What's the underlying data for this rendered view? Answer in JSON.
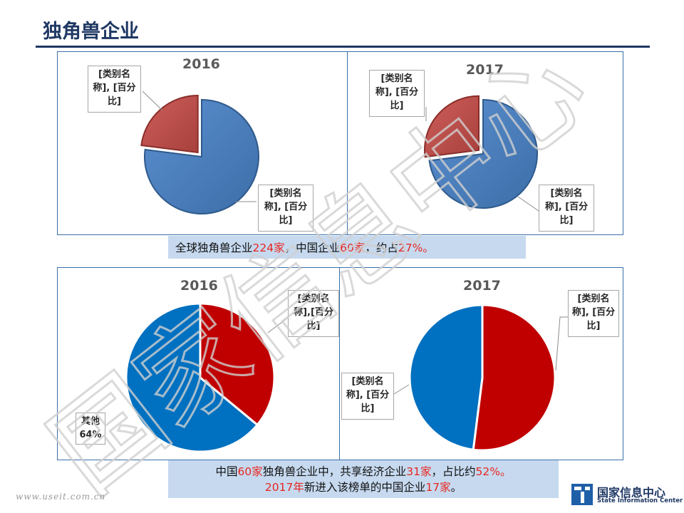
{
  "page": {
    "title": "独角兽企业"
  },
  "chart_data": [
    {
      "type": "pie",
      "title": "2016",
      "slices": [
        {
          "label": "[类别名称], [百分比]",
          "value": 77,
          "color": "#4f81bd"
        },
        {
          "label": "[类别名称], [百分比]",
          "value": 23,
          "color": "#c0504d"
        }
      ]
    },
    {
      "type": "pie",
      "title": "2017",
      "slices": [
        {
          "label": "[类别名称], [百分比]",
          "value": 73,
          "color": "#4f81bd"
        },
        {
          "label": "[类别名称], [百分比]",
          "value": 27,
          "color": "#c0504d"
        }
      ]
    },
    {
      "type": "pie",
      "title": "2016",
      "slices": [
        {
          "label": "[类别名称],[百分比]",
          "value": 36,
          "color": "#c00000"
        },
        {
          "label": "其他 64%",
          "value": 64,
          "color": "#0070c0"
        }
      ]
    },
    {
      "type": "pie",
      "title": "2017",
      "slices": [
        {
          "label": "[类别名称], [百分比]",
          "value": 52,
          "color": "#c00000"
        },
        {
          "label": "[类别名称], [百分比]",
          "value": 48,
          "color": "#0070c0"
        }
      ]
    }
  ],
  "labels": {
    "c1_red": [
      "[类别名",
      "称], [百分",
      "比]"
    ],
    "c1_blue": [
      "[类别名",
      "称], [百分",
      "比]"
    ],
    "c2_red": [
      "[类别名",
      "称], [百分",
      "比]"
    ],
    "c2_blue": [
      "[类别名",
      "称], [百分",
      "比]"
    ],
    "c3_red": [
      "[类别名",
      "称],[百分",
      "比]"
    ],
    "c3_other": [
      "其他",
      "64%"
    ],
    "c4_red": [
      "[类别名",
      "称], [百分",
      "比]"
    ],
    "c4_blue": [
      "[类别名",
      "称], [百分",
      "比]"
    ]
  },
  "caption_top": {
    "t1": "全球独角兽企业",
    "n1": "224家",
    "t2": "，中国企业",
    "n2": "60家",
    "t3": "，约占",
    "n3": "27%。"
  },
  "caption_bottom": {
    "l1_t1": "中国",
    "l1_n1": "60家",
    "l1_t2": "独角兽企业中，共享经济企业",
    "l1_n2": "31家",
    "l1_t3": "，占比约",
    "l1_n3": "52%。",
    "l2_n1": "2017年",
    "l2_t1": "新进入该榜单的中国企业",
    "l2_n2": "17家",
    "l2_t2": "。"
  },
  "watermark": "国家信息中心",
  "footer": {
    "url": "www.useit.com.cn"
  },
  "logo": {
    "cn": "国家信息中心",
    "en": "State Information Center"
  }
}
